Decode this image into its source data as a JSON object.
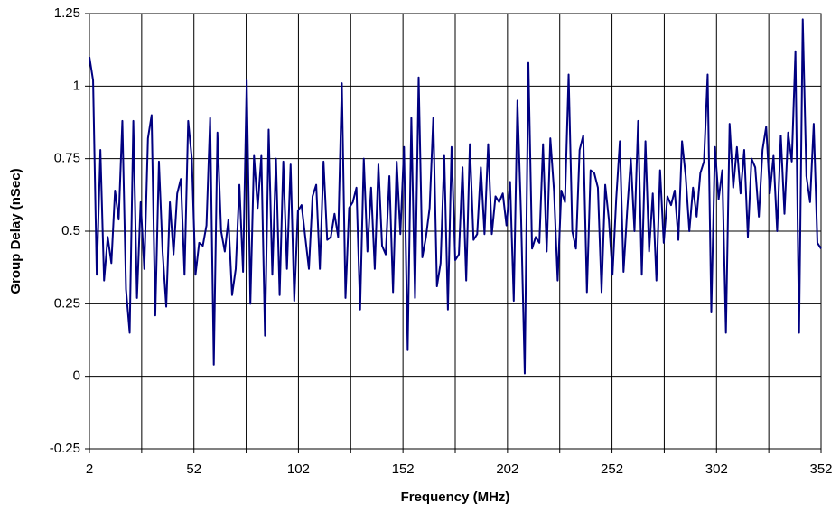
{
  "chart_data": {
    "type": "line",
    "x_label": "Frequency (MHz)",
    "y_label": "Group Delay (nSec)",
    "x": [
      2,
      3.75,
      5.5,
      7.25,
      9,
      10.75,
      12.5,
      14.25,
      16,
      17.75,
      19.5,
      21.25,
      23,
      24.75,
      26.5,
      28.25,
      30,
      31.75,
      33.5,
      35.25,
      37,
      38.75,
      40.5,
      42.25,
      44,
      45.75,
      47.5,
      49.25,
      51,
      52.75,
      54.5,
      56.25,
      58,
      59.75,
      61.5,
      63.25,
      65,
      66.75,
      68.5,
      70.25,
      72,
      73.75,
      75.5,
      77.25,
      79,
      80.75,
      82.5,
      84.25,
      86,
      87.75,
      89.5,
      91.25,
      93,
      94.75,
      96.5,
      98.25,
      100,
      101.75,
      103.5,
      105.25,
      107,
      108.75,
      110.5,
      112.25,
      114,
      115.75,
      117.5,
      119.25,
      121,
      122.75,
      124.5,
      126.25,
      128,
      129.75,
      131.5,
      133.25,
      135,
      136.75,
      138.5,
      140.25,
      142,
      143.75,
      145.5,
      147.25,
      149,
      150.75,
      152.5,
      154.25,
      156,
      157.75,
      159.5,
      161.25,
      163,
      164.75,
      166.5,
      168.25,
      170,
      171.75,
      173.5,
      175.25,
      177,
      178.75,
      180.5,
      182.25,
      184,
      185.75,
      187.5,
      189.25,
      191,
      192.75,
      194.5,
      196.25,
      198,
      199.75,
      201.5,
      203.25,
      205,
      206.75,
      208.5,
      210.25,
      212,
      213.75,
      215.5,
      217.25,
      219,
      220.75,
      222.5,
      224.25,
      226,
      227.75,
      229.5,
      231.25,
      233,
      234.75,
      236.5,
      238.25,
      240,
      241.75,
      243.5,
      245.25,
      247,
      248.75,
      250.5,
      252.25,
      254,
      255.75,
      257.5,
      259.25,
      261,
      262.75,
      264.5,
      266.25,
      268,
      269.75,
      271.5,
      273.25,
      275,
      276.75,
      278.5,
      280.25,
      282,
      283.75,
      285.5,
      287.25,
      289,
      290.75,
      292.5,
      294.25,
      296,
      297.75,
      299.5,
      301.25,
      303,
      304.75,
      306.5,
      308.25,
      310,
      311.75,
      313.5,
      315.25,
      317,
      318.75,
      320.5,
      322.25,
      324,
      325.75,
      327.5,
      329.25,
      331,
      332.75,
      334.5,
      336.25,
      338,
      339.75,
      341.5,
      343.25,
      345,
      346.75,
      348.5,
      350.25,
      352
    ],
    "series": [
      {
        "color": "#000080",
        "values": [
          1.1,
          1.02,
          0.35,
          0.78,
          0.33,
          0.48,
          0.39,
          0.64,
          0.54,
          0.88,
          0.3,
          0.15,
          0.88,
          0.27,
          0.6,
          0.37,
          0.82,
          0.9,
          0.21,
          0.74,
          0.43,
          0.24,
          0.6,
          0.42,
          0.63,
          0.68,
          0.35,
          0.88,
          0.75,
          0.35,
          0.46,
          0.45,
          0.52,
          0.89,
          0.04,
          0.84,
          0.5,
          0.43,
          0.54,
          0.28,
          0.37,
          0.66,
          0.36,
          1.02,
          0.25,
          0.76,
          0.58,
          0.76,
          0.14,
          0.85,
          0.35,
          0.75,
          0.28,
          0.74,
          0.37,
          0.73,
          0.26,
          0.57,
          0.59,
          0.48,
          0.37,
          0.62,
          0.66,
          0.37,
          0.74,
          0.47,
          0.48,
          0.56,
          0.48,
          1.01,
          0.27,
          0.58,
          0.6,
          0.65,
          0.23,
          0.75,
          0.43,
          0.65,
          0.37,
          0.73,
          0.45,
          0.42,
          0.69,
          0.29,
          0.74,
          0.49,
          0.79,
          0.09,
          0.89,
          0.27,
          1.03,
          0.41,
          0.48,
          0.58,
          0.89,
          0.31,
          0.39,
          0.76,
          0.23,
          0.79,
          0.4,
          0.42,
          0.72,
          0.33,
          0.8,
          0.47,
          0.49,
          0.72,
          0.49,
          0.8,
          0.49,
          0.62,
          0.6,
          0.63,
          0.52,
          0.67,
          0.26,
          0.95,
          0.55,
          0.01,
          1.08,
          0.44,
          0.48,
          0.46,
          0.8,
          0.43,
          0.82,
          0.64,
          0.33,
          0.64,
          0.6,
          1.04,
          0.5,
          0.44,
          0.78,
          0.83,
          0.29,
          0.71,
          0.7,
          0.65,
          0.29,
          0.66,
          0.54,
          0.35,
          0.61,
          0.81,
          0.36,
          0.57,
          0.75,
          0.5,
          0.88,
          0.35,
          0.81,
          0.43,
          0.63,
          0.33,
          0.71,
          0.46,
          0.62,
          0.59,
          0.64,
          0.47,
          0.81,
          0.69,
          0.5,
          0.65,
          0.55,
          0.7,
          0.74,
          1.04,
          0.22,
          0.79,
          0.61,
          0.71,
          0.15,
          0.87,
          0.65,
          0.79,
          0.63,
          0.78,
          0.48,
          0.75,
          0.72,
          0.55,
          0.78,
          0.86,
          0.63,
          0.76,
          0.5,
          0.83,
          0.56,
          0.84,
          0.74,
          1.12,
          0.15,
          1.23,
          0.69,
          0.6,
          0.87,
          0.46,
          0.44
        ]
      }
    ],
    "xlim": [
      2,
      352
    ],
    "xticks": [
      2,
      52,
      102,
      152,
      202,
      252,
      302,
      352
    ],
    "x_minor_ticks": [
      27,
      77,
      127,
      177,
      227,
      277,
      327
    ],
    "ylim": [
      -0.25,
      1.25
    ],
    "yticks": [
      -0.25,
      0,
      0.25,
      0.5,
      0.75,
      1,
      1.25
    ],
    "grid": true
  }
}
